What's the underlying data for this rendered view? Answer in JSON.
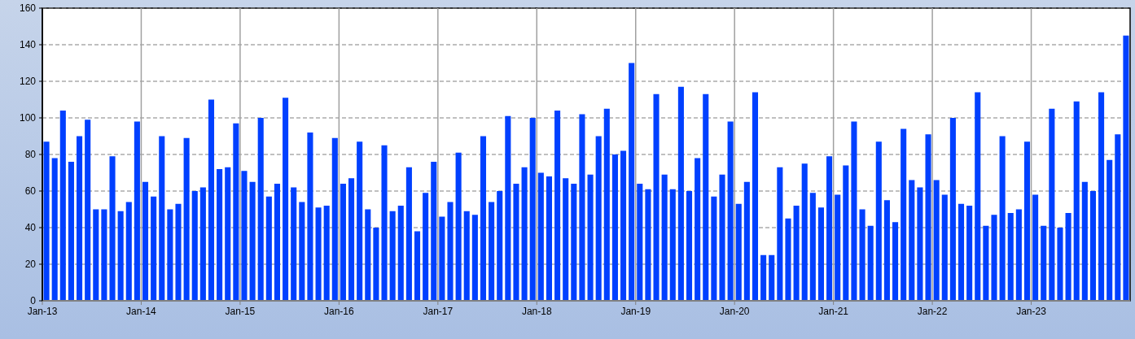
{
  "chart_data": {
    "type": "bar",
    "categories": [
      "Jan-13",
      null,
      null,
      null,
      null,
      null,
      null,
      null,
      null,
      null,
      null,
      null,
      "Jan-14",
      null,
      null,
      null,
      null,
      null,
      null,
      null,
      null,
      null,
      null,
      null,
      "Jan-15",
      null,
      null,
      null,
      null,
      null,
      null,
      null,
      null,
      null,
      null,
      null,
      "Jan-16",
      null,
      null,
      null,
      null,
      null,
      null,
      null,
      null,
      null,
      null,
      null,
      "Jan-17",
      null,
      null,
      null,
      null,
      null,
      null,
      null,
      null,
      null,
      null,
      null,
      "Jan-18",
      null,
      null,
      null,
      null,
      null,
      null,
      null,
      null,
      null,
      null,
      null,
      "Jan-19",
      null,
      null,
      null,
      null,
      null,
      null,
      null,
      null,
      null,
      null,
      null,
      "Jan-20",
      null,
      null,
      null,
      null,
      null,
      null,
      null,
      null,
      null,
      null,
      null,
      "Jan-21",
      null,
      null,
      null,
      null,
      null,
      null,
      null,
      null,
      null,
      null,
      null,
      "Jan-22",
      null,
      null,
      null,
      null,
      null,
      null,
      null,
      null,
      null,
      null,
      null,
      "Jan-23",
      null,
      null,
      null,
      null,
      null,
      null,
      null,
      null,
      null,
      null,
      null
    ],
    "values": [
      87,
      78,
      104,
      76,
      90,
      99,
      50,
      50,
      79,
      49,
      54,
      98,
      65,
      57,
      90,
      50,
      53,
      89,
      60,
      62,
      110,
      72,
      73,
      97,
      71,
      65,
      100,
      57,
      64,
      111,
      62,
      54,
      92,
      51,
      52,
      89,
      64,
      67,
      87,
      50,
      40,
      85,
      49,
      52,
      73,
      38,
      59,
      76,
      46,
      54,
      81,
      49,
      47,
      90,
      54,
      60,
      101,
      64,
      73,
      100,
      70,
      68,
      104,
      67,
      64,
      102,
      69,
      90,
      105,
      80,
      82,
      130,
      64,
      61,
      113,
      69,
      61,
      117,
      60,
      78,
      113,
      57,
      69,
      98,
      53,
      65,
      114,
      25,
      25,
      73,
      45,
      52,
      75,
      59,
      51,
      79,
      58,
      74,
      98,
      50,
      41,
      87,
      55,
      43,
      94,
      66,
      62,
      91,
      66,
      58,
      100,
      53,
      52,
      114,
      41,
      47,
      90,
      48,
      50,
      87,
      58,
      41,
      105,
      40,
      48,
      109,
      65,
      60,
      114,
      77,
      91,
      145
    ],
    "color": "#0040ff",
    "ylim": [
      0,
      160
    ],
    "yticks": [
      0,
      20,
      40,
      60,
      80,
      100,
      120,
      140,
      160
    ],
    "grid": true
  }
}
